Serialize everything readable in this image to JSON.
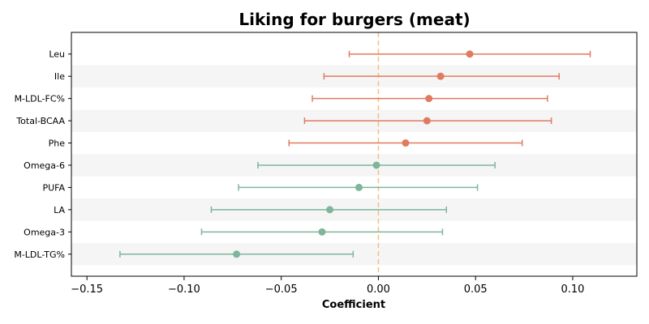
{
  "chart_data": {
    "type": "forest",
    "title": "Liking for burgers (meat)",
    "xlabel": "Coefficient",
    "ylabel": "",
    "xlim": [
      -0.158,
      0.133
    ],
    "xticks": [
      -0.15,
      -0.1,
      -0.05,
      0.0,
      0.05,
      0.1
    ],
    "xtick_labels": [
      "−0.15",
      "−0.10",
      "−0.05",
      "0.00",
      "0.05",
      "0.10"
    ],
    "reference_line": 0,
    "grid": false,
    "alternating_row_bands": true,
    "colors": {
      "positive": "#e07b5f",
      "negative": "#7fb59a",
      "reference": "#f2c27a",
      "band": "#f5f5f5"
    },
    "rows": [
      {
        "label": "Leu",
        "estimate": 0.047,
        "ci_low": -0.015,
        "ci_high": 0.109
      },
      {
        "label": "Ile",
        "estimate": 0.032,
        "ci_low": -0.028,
        "ci_high": 0.093
      },
      {
        "label": "M-LDL-FC%",
        "estimate": 0.026,
        "ci_low": -0.034,
        "ci_high": 0.087
      },
      {
        "label": "Total-BCAA",
        "estimate": 0.025,
        "ci_low": -0.038,
        "ci_high": 0.089
      },
      {
        "label": "Phe",
        "estimate": 0.014,
        "ci_low": -0.046,
        "ci_high": 0.074
      },
      {
        "label": "Omega-6",
        "estimate": -0.001,
        "ci_low": -0.062,
        "ci_high": 0.06
      },
      {
        "label": "PUFA",
        "estimate": -0.01,
        "ci_low": -0.072,
        "ci_high": 0.051
      },
      {
        "label": "LA",
        "estimate": -0.025,
        "ci_low": -0.086,
        "ci_high": 0.035
      },
      {
        "label": "Omega-3",
        "estimate": -0.029,
        "ci_low": -0.091,
        "ci_high": 0.033
      },
      {
        "label": "M-LDL-TG%",
        "estimate": -0.073,
        "ci_low": -0.133,
        "ci_high": -0.013
      }
    ]
  }
}
